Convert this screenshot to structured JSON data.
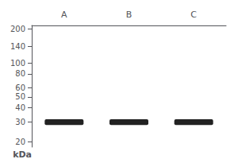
{
  "chart_data": {
    "type": "band",
    "ylabel": "kDa",
    "categories": [
      "A",
      "B",
      "C"
    ],
    "values": [
      30,
      30,
      30
    ],
    "band_height": 3.5,
    "color": "#222222",
    "log": "y",
    "ylim": [
      18,
      215
    ],
    "yticks": [
      200,
      140,
      100,
      80,
      60,
      50,
      40,
      30,
      20
    ],
    "grid": false
  }
}
